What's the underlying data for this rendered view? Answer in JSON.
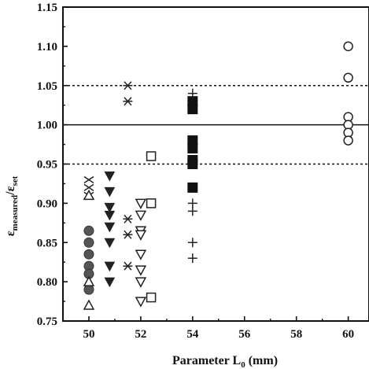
{
  "chart_data": {
    "type": "scatter",
    "title": "",
    "xlabel": "Parameter L",
    "xlabel_sub": "0",
    "xlabel_unit": " (mm)",
    "ylabel_parts": {
      "eps1": "ε",
      "sub1": "measured",
      "slash": "/",
      "eps2": "ε",
      "sub2": "set"
    },
    "xlim": [
      49,
      60.8
    ],
    "ylim": [
      0.75,
      1.15
    ],
    "xticks": [
      50,
      52,
      54,
      56,
      58,
      60
    ],
    "xtick_labels": [
      "50",
      "52",
      "54",
      "56",
      "58",
      "60"
    ],
    "yticks": [
      0.75,
      0.8,
      0.85,
      0.9,
      0.95,
      1.0,
      1.05,
      1.1,
      1.15
    ],
    "ytick_labels": [
      "0.75",
      "0.80",
      "0.85",
      "0.90",
      "0.95",
      "1.00",
      "1.05",
      "1.10",
      "1.15"
    ],
    "grid": false,
    "reference_lines": [
      {
        "y": 1.05,
        "style": "dashed"
      },
      {
        "y": 1.0,
        "style": "solid"
      },
      {
        "y": 0.95,
        "style": "dashed"
      }
    ],
    "series": [
      {
        "marker": "x-cross",
        "points": [
          [
            50,
            0.93
          ],
          [
            50,
            0.92
          ],
          [
            50,
            0.91
          ]
        ]
      },
      {
        "marker": "filled-circle",
        "points": [
          [
            50,
            0.865
          ],
          [
            50,
            0.85
          ],
          [
            50,
            0.835
          ],
          [
            50,
            0.82
          ],
          [
            50,
            0.81
          ],
          [
            50,
            0.79
          ]
        ]
      },
      {
        "marker": "open-triangle-up",
        "points": [
          [
            50,
            0.91
          ],
          [
            50,
            0.8
          ],
          [
            50,
            0.77
          ]
        ]
      },
      {
        "marker": "filled-triangle-down",
        "points": [
          [
            50.8,
            0.935
          ],
          [
            50.8,
            0.915
          ],
          [
            50.8,
            0.895
          ],
          [
            50.8,
            0.885
          ],
          [
            50.8,
            0.87
          ],
          [
            50.8,
            0.85
          ],
          [
            50.8,
            0.82
          ],
          [
            50.8,
            0.8
          ]
        ]
      },
      {
        "marker": "asterisk",
        "points": [
          [
            51.5,
            1.05
          ],
          [
            51.5,
            1.03
          ],
          [
            51.5,
            0.88
          ],
          [
            51.5,
            0.86
          ],
          [
            51.5,
            0.82
          ]
        ]
      },
      {
        "marker": "open-triangle-down",
        "points": [
          [
            52,
            0.9
          ],
          [
            52,
            0.885
          ],
          [
            52,
            0.865
          ],
          [
            52,
            0.86
          ],
          [
            52,
            0.835
          ],
          [
            52,
            0.815
          ],
          [
            52,
            0.8
          ],
          [
            52,
            0.775
          ]
        ]
      },
      {
        "marker": "open-square",
        "points": [
          [
            52.4,
            0.96
          ],
          [
            52.4,
            0.9
          ],
          [
            52.4,
            0.78
          ]
        ]
      },
      {
        "marker": "filled-square",
        "points": [
          [
            54,
            1.03
          ],
          [
            54,
            1.02
          ],
          [
            54,
            0.98
          ],
          [
            54,
            0.97
          ],
          [
            54,
            0.955
          ],
          [
            54,
            0.95
          ],
          [
            54,
            0.92
          ]
        ]
      },
      {
        "marker": "plus",
        "points": [
          [
            54,
            1.04
          ],
          [
            54,
            0.9
          ],
          [
            54,
            0.89
          ],
          [
            54,
            0.85
          ],
          [
            54,
            0.83
          ]
        ]
      },
      {
        "marker": "open-circle",
        "points": [
          [
            60,
            1.1
          ],
          [
            60,
            1.06
          ],
          [
            60,
            1.01
          ],
          [
            60,
            1.0
          ],
          [
            60,
            0.99
          ],
          [
            60,
            0.98
          ]
        ]
      }
    ]
  }
}
